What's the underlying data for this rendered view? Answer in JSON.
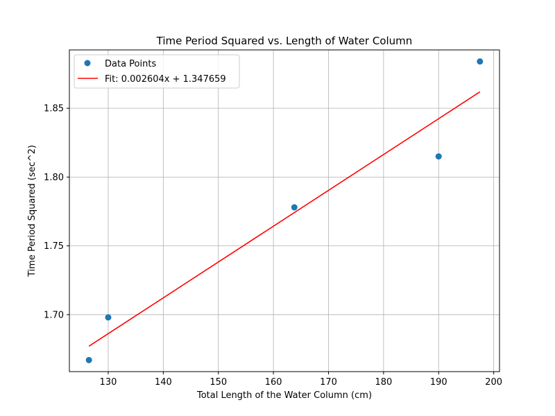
{
  "chart_data": {
    "type": "scatter",
    "title": "Time Period Squared vs. Length of Water Column",
    "xlabel": "Total Length of the Water Column (cm)",
    "ylabel": "Time Period Squared (sec^2)",
    "xlim": [
      122.95,
      201.05
    ],
    "ylim": [
      1.6586,
      1.8924
    ],
    "x_ticks": [
      130,
      140,
      150,
      160,
      170,
      180,
      190,
      200
    ],
    "x_tick_labels": [
      "130",
      "140",
      "150",
      "160",
      "170",
      "180",
      "190",
      "200"
    ],
    "y_ticks": [
      1.7,
      1.75,
      1.8,
      1.85
    ],
    "y_tick_labels": [
      "1.70",
      "1.75",
      "1.80",
      "1.85"
    ],
    "grid": true,
    "legend_position": "top-left",
    "series": [
      {
        "name": "Data Points",
        "kind": "scatter",
        "color": "#1f77b4",
        "x": [
          126.5,
          130.0,
          163.8,
          190.0,
          197.5
        ],
        "y": [
          1.667,
          1.698,
          1.778,
          1.815,
          1.884
        ]
      },
      {
        "name": "Fit: 0.002604x + 1.347659",
        "kind": "line",
        "color": "#ff0000",
        "slope": 0.002604,
        "intercept": 1.347659,
        "x": [
          126.5,
          197.5
        ]
      }
    ]
  }
}
